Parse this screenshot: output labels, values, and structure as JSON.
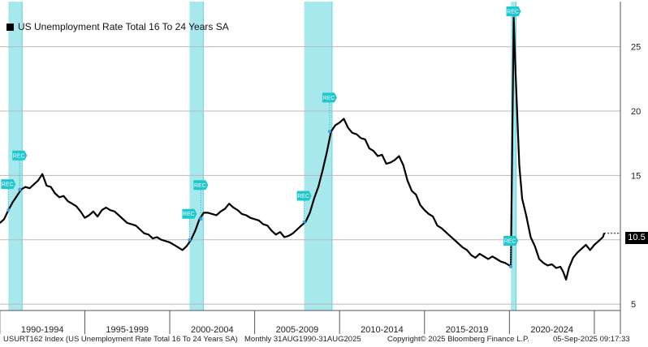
{
  "chart_data": {
    "type": "line",
    "title": "",
    "legend": "US Unemployment Rate Total 16 To 24 Years SA",
    "legend_position": "top-left",
    "x_range": [
      "1990-01",
      "2025-08"
    ],
    "ylim": [
      4.5,
      28.5
    ],
    "y_ticks": [
      5,
      10,
      15,
      20,
      25
    ],
    "x_tick_labels": [
      "1990-1994",
      "1995-1999",
      "2000-2004",
      "2005-2009",
      "2010-2014",
      "2015-2019",
      "2020-2024"
    ],
    "grid": "horizontal",
    "last_value": "10.5",
    "recessions": [
      {
        "start": "1990-07",
        "end": "1991-03"
      },
      {
        "start": "2001-03",
        "end": "2001-11"
      },
      {
        "start": "2007-12",
        "end": "2009-06"
      },
      {
        "start": "2020-02",
        "end": "2020-04"
      }
    ],
    "marker_label": "REC",
    "series": [
      {
        "name": "US Unemployment Rate Total 16 To 24 Years SA",
        "color": "#000000",
        "points": [
          [
            "1990-01",
            11.3
          ],
          [
            "1990-04",
            11.6
          ],
          [
            "1990-07",
            12.3
          ],
          [
            "1990-10",
            12.9
          ],
          [
            "1991-01",
            13.4
          ],
          [
            "1991-04",
            13.9
          ],
          [
            "1991-07",
            14.1
          ],
          [
            "1991-10",
            14.0
          ],
          [
            "1992-01",
            14.3
          ],
          [
            "1992-04",
            14.6
          ],
          [
            "1992-07",
            15.1
          ],
          [
            "1992-10",
            14.2
          ],
          [
            "1993-01",
            14.1
          ],
          [
            "1993-04",
            13.6
          ],
          [
            "1993-07",
            13.3
          ],
          [
            "1993-10",
            13.4
          ],
          [
            "1994-01",
            13.0
          ],
          [
            "1994-04",
            12.8
          ],
          [
            "1994-07",
            12.6
          ],
          [
            "1994-10",
            12.2
          ],
          [
            "1995-01",
            11.7
          ],
          [
            "1995-04",
            11.9
          ],
          [
            "1995-07",
            12.2
          ],
          [
            "1995-10",
            11.8
          ],
          [
            "1996-01",
            12.3
          ],
          [
            "1996-04",
            12.5
          ],
          [
            "1996-07",
            12.3
          ],
          [
            "1996-10",
            12.2
          ],
          [
            "1997-01",
            11.9
          ],
          [
            "1997-04",
            11.6
          ],
          [
            "1997-07",
            11.3
          ],
          [
            "1997-10",
            11.2
          ],
          [
            "1998-01",
            11.1
          ],
          [
            "1998-04",
            10.8
          ],
          [
            "1998-07",
            10.5
          ],
          [
            "1998-10",
            10.4
          ],
          [
            "1999-01",
            10.1
          ],
          [
            "1999-04",
            10.2
          ],
          [
            "1999-07",
            10.0
          ],
          [
            "1999-10",
            9.9
          ],
          [
            "2000-01",
            9.8
          ],
          [
            "2000-04",
            9.6
          ],
          [
            "2000-07",
            9.4
          ],
          [
            "2000-10",
            9.2
          ],
          [
            "2001-01",
            9.5
          ],
          [
            "2001-04",
            10.0
          ],
          [
            "2001-07",
            10.7
          ],
          [
            "2001-10",
            11.6
          ],
          [
            "2002-01",
            12.1
          ],
          [
            "2002-04",
            12.1
          ],
          [
            "2002-07",
            12.0
          ],
          [
            "2002-10",
            11.9
          ],
          [
            "2003-01",
            12.2
          ],
          [
            "2003-04",
            12.4
          ],
          [
            "2003-07",
            12.8
          ],
          [
            "2003-10",
            12.5
          ],
          [
            "2004-01",
            12.3
          ],
          [
            "2004-04",
            12.0
          ],
          [
            "2004-07",
            11.9
          ],
          [
            "2004-10",
            11.7
          ],
          [
            "2005-01",
            11.6
          ],
          [
            "2005-04",
            11.5
          ],
          [
            "2005-07",
            11.2
          ],
          [
            "2005-10",
            11.1
          ],
          [
            "2006-01",
            10.7
          ],
          [
            "2006-04",
            10.4
          ],
          [
            "2006-07",
            10.6
          ],
          [
            "2006-10",
            10.2
          ],
          [
            "2007-01",
            10.3
          ],
          [
            "2007-04",
            10.5
          ],
          [
            "2007-07",
            10.8
          ],
          [
            "2007-10",
            11.1
          ],
          [
            "2008-01",
            11.4
          ],
          [
            "2008-04",
            12.1
          ],
          [
            "2008-07",
            13.2
          ],
          [
            "2008-10",
            14.1
          ],
          [
            "2009-01",
            15.4
          ],
          [
            "2009-04",
            16.8
          ],
          [
            "2009-07",
            18.4
          ],
          [
            "2009-10",
            18.9
          ],
          [
            "2010-01",
            19.1
          ],
          [
            "2010-04",
            19.4
          ],
          [
            "2010-07",
            18.7
          ],
          [
            "2010-10",
            18.3
          ],
          [
            "2011-01",
            18.2
          ],
          [
            "2011-04",
            17.9
          ],
          [
            "2011-07",
            17.8
          ],
          [
            "2011-10",
            17.1
          ],
          [
            "2012-01",
            16.9
          ],
          [
            "2012-04",
            16.5
          ],
          [
            "2012-07",
            16.6
          ],
          [
            "2012-10",
            15.9
          ],
          [
            "2013-01",
            16.0
          ],
          [
            "2013-04",
            16.2
          ],
          [
            "2013-07",
            16.5
          ],
          [
            "2013-10",
            15.8
          ],
          [
            "2014-01",
            14.6
          ],
          [
            "2014-04",
            13.8
          ],
          [
            "2014-07",
            13.5
          ],
          [
            "2014-10",
            12.7
          ],
          [
            "2015-01",
            12.3
          ],
          [
            "2015-04",
            12.0
          ],
          [
            "2015-07",
            11.8
          ],
          [
            "2015-10",
            11.1
          ],
          [
            "2016-01",
            10.9
          ],
          [
            "2016-04",
            10.6
          ],
          [
            "2016-07",
            10.3
          ],
          [
            "2016-10",
            10.0
          ],
          [
            "2017-01",
            9.7
          ],
          [
            "2017-04",
            9.4
          ],
          [
            "2017-07",
            9.2
          ],
          [
            "2017-10",
            8.8
          ],
          [
            "2018-01",
            8.6
          ],
          [
            "2018-04",
            8.9
          ],
          [
            "2018-07",
            8.7
          ],
          [
            "2018-10",
            8.5
          ],
          [
            "2019-01",
            8.7
          ],
          [
            "2019-04",
            8.5
          ],
          [
            "2019-07",
            8.3
          ],
          [
            "2019-10",
            8.2
          ],
          [
            "2020-01",
            8.0
          ],
          [
            "2020-02",
            7.9
          ],
          [
            "2020-04",
            27.4
          ],
          [
            "2020-05",
            24.0
          ],
          [
            "2020-06",
            21.1
          ],
          [
            "2020-07",
            18.4
          ],
          [
            "2020-08",
            15.8
          ],
          [
            "2020-10",
            13.2
          ],
          [
            "2021-01",
            11.8
          ],
          [
            "2021-04",
            10.2
          ],
          [
            "2021-07",
            9.5
          ],
          [
            "2021-10",
            8.5
          ],
          [
            "2022-01",
            8.2
          ],
          [
            "2022-04",
            8.0
          ],
          [
            "2022-07",
            8.1
          ],
          [
            "2022-10",
            7.8
          ],
          [
            "2023-01",
            7.9
          ],
          [
            "2023-03",
            7.5
          ],
          [
            "2023-05",
            6.9
          ],
          [
            "2023-07",
            7.8
          ],
          [
            "2023-10",
            8.6
          ],
          [
            "2024-01",
            9.0
          ],
          [
            "2024-04",
            9.3
          ],
          [
            "2024-07",
            9.6
          ],
          [
            "2024-10",
            9.2
          ],
          [
            "2025-01",
            9.6
          ],
          [
            "2025-04",
            9.9
          ],
          [
            "2025-07",
            10.2
          ],
          [
            "2025-08",
            10.5
          ]
        ]
      }
    ]
  },
  "footer": {
    "ticker": "USURT162 Index (US Unemployment Rate Total 16 To 24 Years SA)",
    "range": "Monthly 31AUG1990-31AUG2025",
    "copyright": "Copyright© 2025 Bloomberg Finance L.P.",
    "timestamp": "05-Sep-2025 09:17:33"
  },
  "colors": {
    "recession_band": "#a7e8ed",
    "recession_band_edge": "#5fd3dc",
    "marker": "#1fc7cf",
    "grid": "#b9b9b9"
  }
}
